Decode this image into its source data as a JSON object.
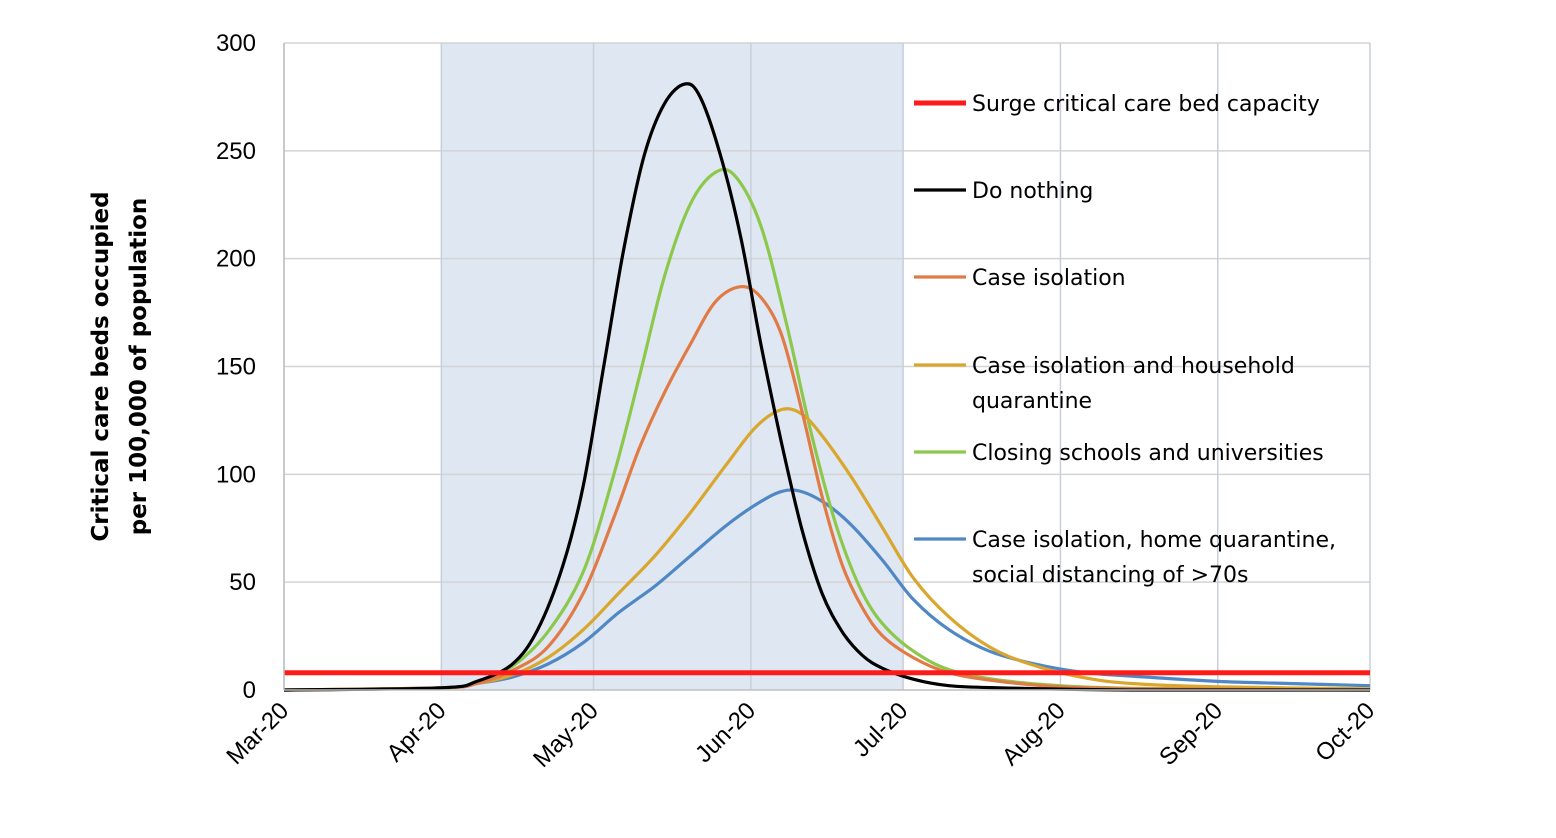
{
  "chart_data": {
    "type": "line",
    "ylabel": [
      "Critical care beds occupied",
      "per 100,000 of population"
    ],
    "xlabel": "",
    "ylim": [
      0,
      300
    ],
    "y_ticks": [
      0,
      50,
      100,
      150,
      200,
      250,
      300
    ],
    "x_ticks": [
      "Mar-20",
      "Apr-20",
      "May-20",
      "Jun-20",
      "Jul-20",
      "Aug-20",
      "Sep-20",
      "Oct-20"
    ],
    "xlim": [
      "2020-03-01",
      "2020-10-01"
    ],
    "shaded_region": {
      "from": "2020-04-01",
      "to": "2020-07-01",
      "color": "#dfe7f2"
    },
    "grid": true,
    "legend_position": "right, inside plot",
    "series": [
      {
        "name": "Surge critical care bed capacity",
        "color": "#ff1a1a",
        "points": [
          [
            "2020-03-01",
            8
          ],
          [
            "2020-10-01",
            8
          ]
        ]
      },
      {
        "name": "Do nothing",
        "color": "#000000",
        "points": [
          [
            "2020-03-01",
            0
          ],
          [
            "2020-04-01",
            1
          ],
          [
            "2020-04-08",
            4
          ],
          [
            "2020-04-15",
            12
          ],
          [
            "2020-04-20",
            28
          ],
          [
            "2020-04-25",
            58
          ],
          [
            "2020-04-29",
            95
          ],
          [
            "2020-05-03",
            150
          ],
          [
            "2020-05-07",
            205
          ],
          [
            "2020-05-11",
            248
          ],
          [
            "2020-05-15",
            272
          ],
          [
            "2020-05-19",
            281
          ],
          [
            "2020-05-22",
            275
          ],
          [
            "2020-05-26",
            248
          ],
          [
            "2020-05-30",
            210
          ],
          [
            "2020-06-03",
            160
          ],
          [
            "2020-06-07",
            115
          ],
          [
            "2020-06-11",
            75
          ],
          [
            "2020-06-15",
            45
          ],
          [
            "2020-06-19",
            27
          ],
          [
            "2020-06-23",
            16
          ],
          [
            "2020-06-27",
            10
          ],
          [
            "2020-07-03",
            5
          ],
          [
            "2020-07-10",
            2
          ],
          [
            "2020-07-20",
            1
          ],
          [
            "2020-08-15",
            0
          ],
          [
            "2020-10-01",
            0
          ]
        ]
      },
      {
        "name": "Case isolation",
        "color": "#e07b46",
        "points": [
          [
            "2020-03-01",
            0
          ],
          [
            "2020-04-01",
            1
          ],
          [
            "2020-04-08",
            3
          ],
          [
            "2020-04-15",
            9
          ],
          [
            "2020-04-22",
            20
          ],
          [
            "2020-04-29",
            45
          ],
          [
            "2020-05-05",
            80
          ],
          [
            "2020-05-10",
            112
          ],
          [
            "2020-05-15",
            138
          ],
          [
            "2020-05-20",
            160
          ],
          [
            "2020-05-25",
            180
          ],
          [
            "2020-05-30",
            187
          ],
          [
            "2020-06-03",
            182
          ],
          [
            "2020-06-07",
            165
          ],
          [
            "2020-06-11",
            130
          ],
          [
            "2020-06-15",
            90
          ],
          [
            "2020-06-19",
            58
          ],
          [
            "2020-06-23",
            38
          ],
          [
            "2020-06-27",
            25
          ],
          [
            "2020-07-03",
            15
          ],
          [
            "2020-07-10",
            8
          ],
          [
            "2020-07-20",
            4
          ],
          [
            "2020-08-01",
            1.5
          ],
          [
            "2020-08-20",
            0.5
          ],
          [
            "2020-10-01",
            0
          ]
        ]
      },
      {
        "name": "Case isolation and household quarantine",
        "color": "#d9a62e",
        "points": [
          [
            "2020-03-01",
            0
          ],
          [
            "2020-04-01",
            1
          ],
          [
            "2020-04-08",
            3
          ],
          [
            "2020-04-15",
            7
          ],
          [
            "2020-04-22",
            15
          ],
          [
            "2020-04-29",
            28
          ],
          [
            "2020-05-06",
            45
          ],
          [
            "2020-05-13",
            62
          ],
          [
            "2020-05-20",
            82
          ],
          [
            "2020-05-27",
            104
          ],
          [
            "2020-06-02",
            122
          ],
          [
            "2020-06-07",
            130
          ],
          [
            "2020-06-11",
            128
          ],
          [
            "2020-06-15",
            118
          ],
          [
            "2020-06-21",
            98
          ],
          [
            "2020-06-27",
            75
          ],
          [
            "2020-07-03",
            52
          ],
          [
            "2020-07-10",
            34
          ],
          [
            "2020-07-18",
            20
          ],
          [
            "2020-07-26",
            12
          ],
          [
            "2020-08-05",
            6
          ],
          [
            "2020-08-15",
            3
          ],
          [
            "2020-09-01",
            1.5
          ],
          [
            "2020-10-01",
            0.5
          ]
        ]
      },
      {
        "name": "Closing schools and universities",
        "color": "#8cc84b",
        "points": [
          [
            "2020-03-01",
            0
          ],
          [
            "2020-04-01",
            1
          ],
          [
            "2020-04-08",
            4
          ],
          [
            "2020-04-15",
            11
          ],
          [
            "2020-04-22",
            27
          ],
          [
            "2020-04-29",
            55
          ],
          [
            "2020-05-05",
            100
          ],
          [
            "2020-05-10",
            145
          ],
          [
            "2020-05-15",
            192
          ],
          [
            "2020-05-20",
            225
          ],
          [
            "2020-05-25",
            240
          ],
          [
            "2020-05-29",
            238
          ],
          [
            "2020-06-03",
            215
          ],
          [
            "2020-06-08",
            170
          ],
          [
            "2020-06-13",
            118
          ],
          [
            "2020-06-18",
            75
          ],
          [
            "2020-06-23",
            45
          ],
          [
            "2020-06-28",
            28
          ],
          [
            "2020-07-05",
            15
          ],
          [
            "2020-07-12",
            8
          ],
          [
            "2020-07-22",
            4
          ],
          [
            "2020-08-05",
            1.5
          ],
          [
            "2020-08-25",
            0.5
          ],
          [
            "2020-10-01",
            0
          ]
        ]
      },
      {
        "name": "Case isolation, home quarantine, social distancing of >70s",
        "color": "#4f88c4",
        "points": [
          [
            "2020-03-01",
            0
          ],
          [
            "2020-04-01",
            1
          ],
          [
            "2020-04-08",
            3
          ],
          [
            "2020-04-15",
            6
          ],
          [
            "2020-04-22",
            12
          ],
          [
            "2020-04-29",
            22
          ],
          [
            "2020-05-06",
            36
          ],
          [
            "2020-05-13",
            48
          ],
          [
            "2020-05-20",
            62
          ],
          [
            "2020-05-27",
            76
          ],
          [
            "2020-06-02",
            86
          ],
          [
            "2020-06-07",
            92
          ],
          [
            "2020-06-11",
            92
          ],
          [
            "2020-06-16",
            86
          ],
          [
            "2020-06-21",
            76
          ],
          [
            "2020-06-27",
            60
          ],
          [
            "2020-07-03",
            42
          ],
          [
            "2020-07-10",
            28
          ],
          [
            "2020-07-18",
            18
          ],
          [
            "2020-07-27",
            12
          ],
          [
            "2020-08-06",
            8
          ],
          [
            "2020-08-18",
            6
          ],
          [
            "2020-09-01",
            4
          ],
          [
            "2020-09-15",
            3
          ],
          [
            "2020-10-01",
            2
          ]
        ]
      }
    ]
  }
}
